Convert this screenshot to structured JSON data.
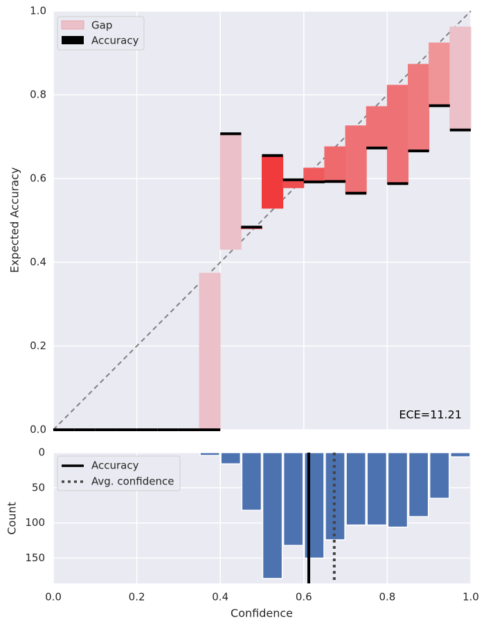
{
  "chart_data": [
    {
      "type": "reliability",
      "ylabel": "Expected Accuracy",
      "annotation": "ECE=11.21",
      "legend": [
        "Gap",
        "Accuracy"
      ],
      "gap_legend_color": "#ebc0c8",
      "accuracy_color": "#000000",
      "bins": [
        0,
        0.05,
        0.1,
        0.15,
        0.2,
        0.25,
        0.3,
        0.35,
        0.4,
        0.45,
        0.5,
        0.55,
        0.6,
        0.65,
        0.7,
        0.75,
        0.8,
        0.85,
        0.9,
        0.95,
        1
      ],
      "accuracy": [
        0,
        0,
        0,
        0,
        0,
        0,
        0,
        0,
        0.707,
        0.484,
        0.655,
        0.597,
        0.592,
        0.593,
        0.565,
        0.673,
        0.588,
        0.666,
        0.774,
        0.716
      ],
      "confidence": [
        0,
        0,
        0,
        0,
        0,
        0,
        0,
        0.374,
        0.431,
        0.48,
        0.529,
        0.578,
        0.625,
        0.676,
        0.726,
        0.772,
        0.823,
        0.873,
        0.924,
        0.962
      ],
      "gap_colors": [
        "#ebc0c8",
        "#ebc0c8",
        "#ebc0c8",
        "#ebc0c8",
        "#ebc0c8",
        "#ebc0c8",
        "#ebc0c8",
        "#ebc0c8",
        "#ebc0c8",
        "#f05a5c",
        "#f03a3c",
        "#ee4e50",
        "#f05a5c",
        "#ee6a6c",
        "#ee7275",
        "#ee7275",
        "#ee7275",
        "#ee7a7d",
        "#ef9598",
        "#ebc0c8"
      ],
      "xlim": [
        0,
        1
      ],
      "ylim": [
        0,
        1
      ],
      "yticks": [
        {
          "value": 0,
          "label": "0.0"
        },
        0.2,
        0.4,
        0.6,
        0.8,
        {
          "value": 1,
          "label": "1.0"
        }
      ],
      "xticks": [
        {
          "value": 0,
          "label": "0.0"
        },
        0.2,
        0.4,
        0.6,
        0.8,
        {
          "value": 1,
          "label": "1.0"
        }
      ],
      "grid": true
    },
    {
      "type": "histogram",
      "xlabel": "Confidence",
      "ylabel": "Count",
      "color": "#4c72b0",
      "bins": [
        0,
        0.05,
        0.1,
        0.15,
        0.2,
        0.25,
        0.3,
        0.35,
        0.4,
        0.45,
        0.5,
        0.55,
        0.6,
        0.65,
        0.7,
        0.75,
        0.8,
        0.85,
        0.9,
        0.95,
        1
      ],
      "values": [
        0,
        0,
        0,
        0,
        0,
        0,
        0,
        4,
        16,
        82,
        179,
        132,
        150,
        124,
        103,
        103,
        106,
        91,
        65,
        6
      ],
      "lines": [
        {
          "name": "Accuracy",
          "x": 0.612,
          "color": "#000000"
        },
        {
          "name": "Avg. confidence",
          "x": 0.673,
          "color": "#444444"
        }
      ],
      "xlim": [
        0,
        1
      ],
      "ylim": [
        0,
        186
      ],
      "xticks": [
        {
          "value": 0,
          "label": "0.0"
        },
        0.2,
        0.4,
        0.6,
        0.8,
        {
          "value": 1,
          "label": "1.0"
        }
      ],
      "yticks": [
        0,
        50,
        100,
        150
      ],
      "grid": true
    }
  ]
}
